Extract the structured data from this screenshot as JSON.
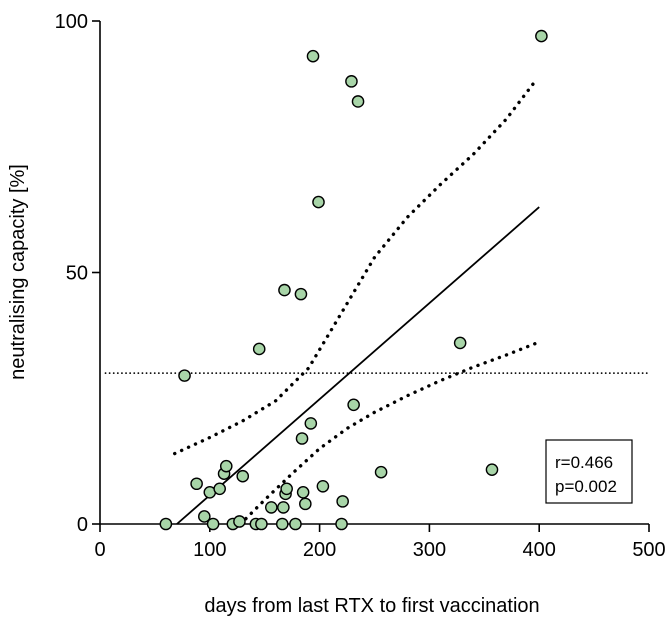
{
  "chart_data": {
    "type": "scatter",
    "title": "",
    "xlabel": "days from last RTX to first vaccination",
    "ylabel": "neutralising capacity [%]",
    "xlim": [
      0,
      500
    ],
    "ylim": [
      0,
      100
    ],
    "xticks": [
      "0",
      "100",
      "200",
      "300",
      "400",
      "500"
    ],
    "yticks": [
      "0",
      "50",
      "100"
    ],
    "grid": false,
    "legend": "none",
    "colors": {
      "point_fill": "#a8d5a8",
      "point_stroke": "#000000",
      "lines": "#000000"
    },
    "annotation": {
      "r": "r=0.466",
      "p": "p=0.002"
    },
    "points": [
      {
        "x": 60,
        "y": 0
      },
      {
        "x": 77,
        "y": 29.5
      },
      {
        "x": 88,
        "y": 8
      },
      {
        "x": 95,
        "y": 1.5
      },
      {
        "x": 100,
        "y": 6.3
      },
      {
        "x": 103,
        "y": 0
      },
      {
        "x": 109,
        "y": 7
      },
      {
        "x": 113,
        "y": 10
      },
      {
        "x": 115,
        "y": 11.5
      },
      {
        "x": 121,
        "y": 0
      },
      {
        "x": 127,
        "y": 0.5
      },
      {
        "x": 130,
        "y": 9.5
      },
      {
        "x": 142,
        "y": 0
      },
      {
        "x": 145,
        "y": 34.8
      },
      {
        "x": 147,
        "y": 0
      },
      {
        "x": 156,
        "y": 3.3
      },
      {
        "x": 166,
        "y": 0
      },
      {
        "x": 167,
        "y": 3.3
      },
      {
        "x": 168,
        "y": 46.5
      },
      {
        "x": 169,
        "y": 6
      },
      {
        "x": 170,
        "y": 7
      },
      {
        "x": 178,
        "y": 0
      },
      {
        "x": 183,
        "y": 45.7
      },
      {
        "x": 184,
        "y": 17
      },
      {
        "x": 185,
        "y": 6.3
      },
      {
        "x": 187,
        "y": 4
      },
      {
        "x": 192,
        "y": 20
      },
      {
        "x": 194,
        "y": 93
      },
      {
        "x": 199,
        "y": 64
      },
      {
        "x": 203,
        "y": 7.5
      },
      {
        "x": 220,
        "y": 0
      },
      {
        "x": 221,
        "y": 4.5
      },
      {
        "x": 229,
        "y": 88
      },
      {
        "x": 231,
        "y": 23.7
      },
      {
        "x": 235,
        "y": 84
      },
      {
        "x": 256,
        "y": 10.3
      },
      {
        "x": 328,
        "y": 36
      },
      {
        "x": 357,
        "y": 10.8
      },
      {
        "x": 402,
        "y": 97
      }
    ],
    "regression": [
      {
        "x": 70,
        "y": 0
      },
      {
        "x": 400,
        "y": 63
      }
    ],
    "ci_upper": [
      {
        "x": 68,
        "y": 14
      },
      {
        "x": 100,
        "y": 17.2
      },
      {
        "x": 130,
        "y": 20.5
      },
      {
        "x": 160,
        "y": 24.5
      },
      {
        "x": 190,
        "y": 31
      },
      {
        "x": 220,
        "y": 42
      },
      {
        "x": 250,
        "y": 53
      },
      {
        "x": 280,
        "y": 61
      },
      {
        "x": 310,
        "y": 67.5
      },
      {
        "x": 340,
        "y": 73.5
      },
      {
        "x": 370,
        "y": 80.5
      },
      {
        "x": 398,
        "y": 88.5
      }
    ],
    "ci_lower": [
      {
        "x": 128,
        "y": 0
      },
      {
        "x": 150,
        "y": 4.8
      },
      {
        "x": 175,
        "y": 10
      },
      {
        "x": 200,
        "y": 15
      },
      {
        "x": 225,
        "y": 19
      },
      {
        "x": 250,
        "y": 22.2
      },
      {
        "x": 280,
        "y": 25.5
      },
      {
        "x": 310,
        "y": 28.5
      },
      {
        "x": 340,
        "y": 31.2
      },
      {
        "x": 370,
        "y": 33.6
      },
      {
        "x": 398,
        "y": 36
      }
    ],
    "threshold": {
      "y": 30,
      "x_start": 5,
      "x_end": 500
    }
  }
}
